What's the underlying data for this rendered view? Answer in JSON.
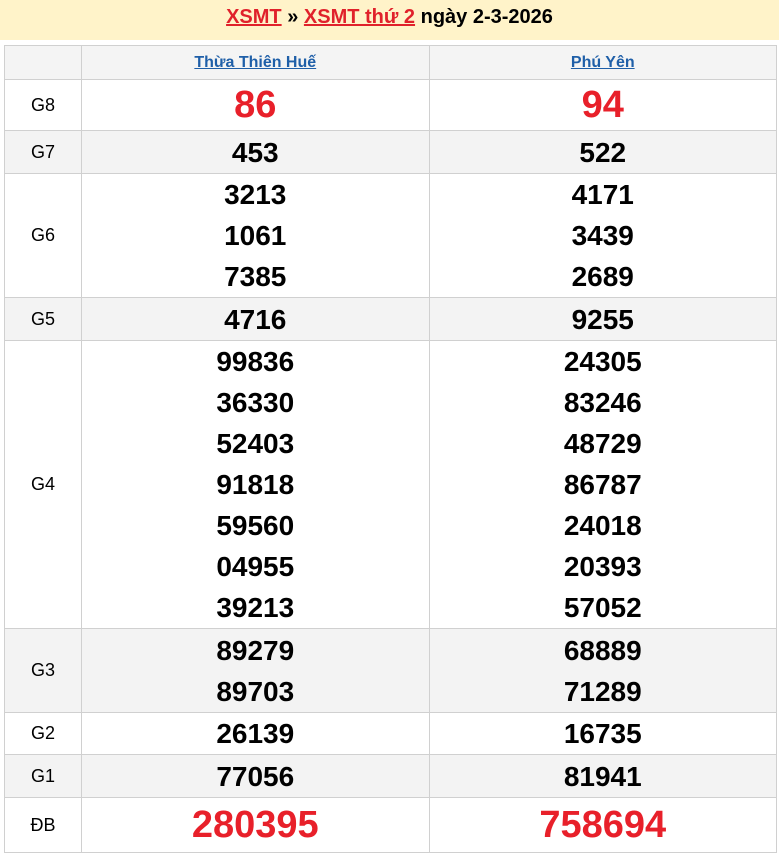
{
  "header": {
    "link1": "XSMT",
    "sep": "»",
    "link2": "XSMT thứ 2",
    "suffix": "ngày 2-3-2026"
  },
  "colors": {
    "accent_red": "#e8202a",
    "link_blue": "#1f5fa8",
    "header_bg": "#fff3c9"
  },
  "provinces": [
    "Thừa Thiên Huế",
    "Phú Yên"
  ],
  "prizes": [
    {
      "label": "G8",
      "big": true,
      "values": [
        [
          "86"
        ],
        [
          "94"
        ]
      ]
    },
    {
      "label": "G7",
      "values": [
        [
          "453"
        ],
        [
          "522"
        ]
      ]
    },
    {
      "label": "G6",
      "values": [
        [
          "3213",
          "1061",
          "7385"
        ],
        [
          "4171",
          "3439",
          "2689"
        ]
      ]
    },
    {
      "label": "G5",
      "values": [
        [
          "4716"
        ],
        [
          "9255"
        ]
      ]
    },
    {
      "label": "G4",
      "values": [
        [
          "99836",
          "36330",
          "52403",
          "91818",
          "59560",
          "04955",
          "39213"
        ],
        [
          "24305",
          "83246",
          "48729",
          "86787",
          "24018",
          "20393",
          "57052"
        ]
      ]
    },
    {
      "label": "G3",
      "values": [
        [
          "89279",
          "89703"
        ],
        [
          "68889",
          "71289"
        ]
      ]
    },
    {
      "label": "G2",
      "values": [
        [
          "26139"
        ],
        [
          "16735"
        ]
      ]
    },
    {
      "label": "G1",
      "values": [
        [
          "77056"
        ],
        [
          "81941"
        ]
      ]
    },
    {
      "label": "ĐB",
      "big": true,
      "values": [
        [
          "280395"
        ],
        [
          "758694"
        ]
      ]
    }
  ]
}
